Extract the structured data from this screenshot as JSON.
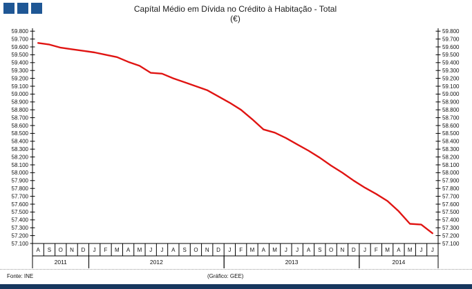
{
  "title": {
    "line1": "Capítal Médio em Dívida no Crédito à Habitação - Total",
    "line2": "(€)"
  },
  "footer": {
    "source": "Fonte: INE",
    "credit": "(Gráfico: GEE)"
  },
  "colors": {
    "line": "#e01412",
    "logo_square": "#1f5795",
    "bottom_bar": "#17375e",
    "axis": "#000000",
    "text": "#1a1a1a"
  },
  "chart_data": {
    "type": "line",
    "title": "Capítal Médio em Dívida no Crédito à Habitação - Total (€)",
    "grid": false,
    "legend": "none",
    "y_axis": {
      "min": 57100,
      "max": 59800,
      "tick_step": 100,
      "sides": [
        "left",
        "right"
      ],
      "tick_labels_top_to_bottom": [
        "59.800",
        "59.700",
        "59.600",
        "59.500",
        "59.400",
        "59.300",
        "59.200",
        "59.100",
        "59.000",
        "58.900",
        "58.800",
        "58.700",
        "58.600",
        "58.500",
        "58.400",
        "58.300",
        "58.200",
        "58.100",
        "58.000",
        "57.900",
        "57.800",
        "57.700",
        "57.600",
        "57.500",
        "57.400",
        "57.300",
        "57.200",
        "57.100"
      ]
    },
    "x_axis": {
      "month_labels": [
        "A",
        "S",
        "O",
        "N",
        "D",
        "J",
        "F",
        "M",
        "A",
        "M",
        "J",
        "J",
        "A",
        "S",
        "O",
        "N",
        "D",
        "J",
        "F",
        "M",
        "A",
        "M",
        "J",
        "J",
        "A",
        "S",
        "O",
        "N",
        "D",
        "J",
        "F",
        "M",
        "A",
        "M",
        "J",
        "J"
      ],
      "year_groups": [
        {
          "label": "2011",
          "months": 5
        },
        {
          "label": "2012",
          "months": 12
        },
        {
          "label": "2013",
          "months": 12
        },
        {
          "label": "2014",
          "months": 7
        }
      ]
    },
    "series": [
      {
        "name": "Total",
        "values": [
          59650,
          59630,
          59590,
          59570,
          59550,
          59530,
          59500,
          59470,
          59410,
          59360,
          59270,
          59260,
          59200,
          59150,
          59100,
          59050,
          58970,
          58890,
          58800,
          58680,
          58550,
          58510,
          58440,
          58360,
          58280,
          58190,
          58090,
          58000,
          57900,
          57810,
          57730,
          57640,
          57510,
          57350,
          57340,
          57230
        ]
      }
    ]
  }
}
